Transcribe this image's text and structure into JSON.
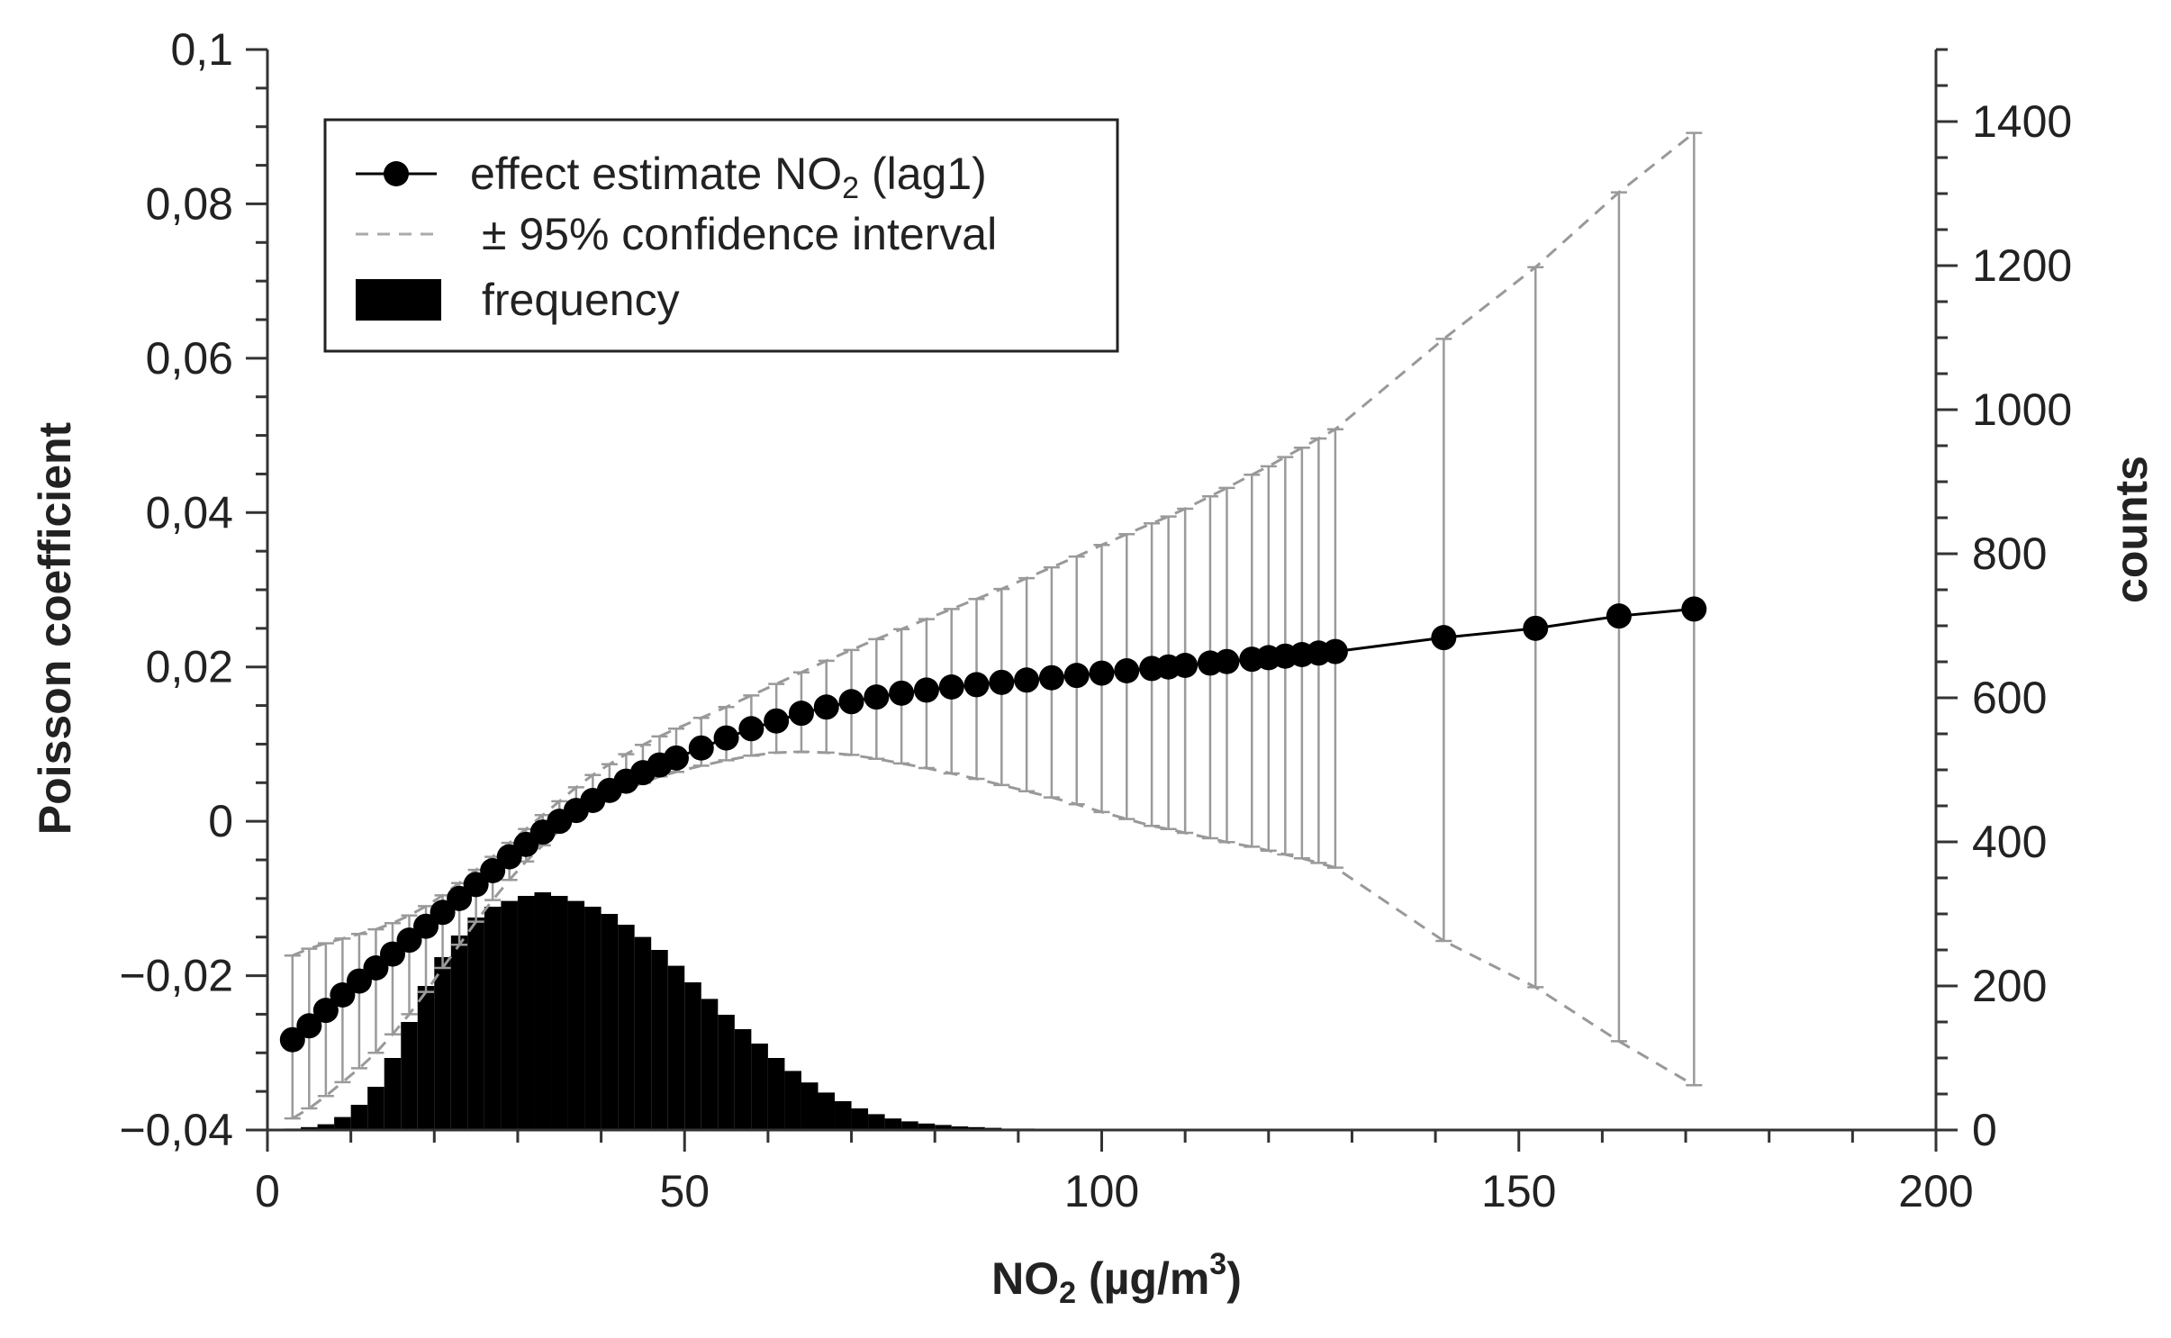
{
  "chart_data": {
    "type": "scatter",
    "title": "",
    "xlabel": "NO₂ (µg/m³)",
    "ylabel": "Poisson coefficient",
    "y2label": "counts",
    "xlim": [
      0,
      200
    ],
    "ylim": [
      -0.04,
      0.1
    ],
    "y2lim": [
      0,
      1500
    ],
    "x_ticks": [
      0,
      50,
      100,
      150,
      200
    ],
    "x_tick_labels": [
      "0",
      "50",
      "100",
      "150",
      "200"
    ],
    "y_ticks": [
      -0.04,
      -0.02,
      0,
      0.02,
      0.04,
      0.06,
      0.08,
      0.1
    ],
    "y_tick_labels": [
      "−0,04",
      "−0,02",
      "0",
      "0,02",
      "0,04",
      "0,06",
      "0,08",
      "0,1"
    ],
    "y2_ticks": [
      0,
      200,
      400,
      600,
      800,
      1000,
      1200,
      1400
    ],
    "y2_tick_labels": [
      "0",
      "200",
      "400",
      "600",
      "800",
      "1000",
      "1200",
      "1400"
    ],
    "grid": false,
    "legend_position": "top-left",
    "legend": {
      "effect_prefix": "effect estimate NO",
      "effect_subscript": "2",
      "effect_suffix": " (lag1)",
      "ci": "± 95% confidence interval",
      "frequency": "frequency"
    },
    "series": [
      {
        "name": "effect estimate NO₂ (lag1)",
        "kind": "line+markers",
        "x": [
          3,
          5,
          7,
          9,
          11,
          13,
          15,
          17,
          19,
          21,
          23,
          25,
          27,
          29,
          31,
          33,
          35,
          37,
          39,
          41,
          43,
          45,
          47,
          49,
          52,
          55,
          58,
          61,
          64,
          67,
          70,
          73,
          76,
          79,
          82,
          85,
          88,
          91,
          94,
          97,
          100,
          103,
          106,
          108,
          110,
          113,
          115,
          118,
          120,
          122,
          124,
          126,
          128,
          141,
          152,
          162,
          171
        ],
        "y": [
          -0.0283,
          -0.0265,
          -0.0245,
          -0.0225,
          -0.0207,
          -0.019,
          -0.0172,
          -0.0154,
          -0.0136,
          -0.0118,
          -0.01,
          -0.0082,
          -0.0064,
          -0.0046,
          -0.003,
          -0.0014,
          0.0,
          0.0014,
          0.0027,
          0.004,
          0.0052,
          0.0063,
          0.0073,
          0.0082,
          0.0095,
          0.0108,
          0.012,
          0.013,
          0.014,
          0.0148,
          0.0155,
          0.0161,
          0.0166,
          0.017,
          0.0174,
          0.0177,
          0.018,
          0.0183,
          0.0186,
          0.0189,
          0.0192,
          0.0195,
          0.0198,
          0.02,
          0.0202,
          0.0205,
          0.0207,
          0.021,
          0.0212,
          0.0214,
          0.0216,
          0.0218,
          0.022,
          0.0238,
          0.025,
          0.0266,
          0.0275
        ]
      },
      {
        "name": "± 95% confidence interval",
        "kind": "errorbars+dashed",
        "x": [
          3,
          5,
          7,
          9,
          11,
          13,
          15,
          17,
          19,
          21,
          23,
          25,
          27,
          29,
          31,
          33,
          35,
          37,
          39,
          41,
          43,
          45,
          47,
          49,
          52,
          55,
          58,
          61,
          64,
          67,
          70,
          73,
          76,
          79,
          82,
          85,
          88,
          91,
          94,
          97,
          100,
          103,
          106,
          108,
          110,
          113,
          115,
          118,
          120,
          122,
          124,
          126,
          128,
          141,
          152,
          162,
          171
        ],
        "upper": [
          -0.0174,
          -0.0165,
          -0.0158,
          -0.0152,
          -0.0146,
          -0.014,
          -0.0132,
          -0.0122,
          -0.011,
          -0.0096,
          -0.008,
          -0.0063,
          -0.0046,
          -0.0028,
          -0.001,
          0.0008,
          0.0026,
          0.0044,
          0.006,
          0.0074,
          0.0087,
          0.0099,
          0.011,
          0.012,
          0.0134,
          0.0148,
          0.0163,
          0.0178,
          0.0193,
          0.0208,
          0.0222,
          0.0236,
          0.0249,
          0.0262,
          0.0275,
          0.0288,
          0.0301,
          0.0315,
          0.0329,
          0.0343,
          0.0358,
          0.0372,
          0.0386,
          0.0395,
          0.0405,
          0.0421,
          0.0432,
          0.0449,
          0.046,
          0.0472,
          0.0484,
          0.0496,
          0.0508,
          0.0625,
          0.0718,
          0.0815,
          0.0892
        ],
        "lower": [
          -0.0385,
          -0.0372,
          -0.0356,
          -0.0338,
          -0.032,
          -0.03,
          -0.0276,
          -0.025,
          -0.0221,
          -0.019,
          -0.016,
          -0.013,
          -0.0102,
          -0.0076,
          -0.0052,
          -0.0031,
          -0.0012,
          0.0004,
          0.0018,
          0.003,
          0.0041,
          0.005,
          0.0058,
          0.0064,
          0.0072,
          0.0079,
          0.0085,
          0.0089,
          0.009,
          0.0089,
          0.0086,
          0.0081,
          0.0075,
          0.0069,
          0.0062,
          0.0055,
          0.0047,
          0.0039,
          0.0031,
          0.0022,
          0.0012,
          0.0003,
          -0.0006,
          -0.001,
          -0.0015,
          -0.0022,
          -0.0027,
          -0.0033,
          -0.0038,
          -0.0043,
          -0.0048,
          -0.0054,
          -0.006,
          -0.0155,
          -0.0215,
          -0.0285,
          -0.0342
        ]
      },
      {
        "name": "frequency",
        "kind": "histogram",
        "axis": "y2",
        "bin_start": [
          2,
          4,
          6,
          8,
          10,
          12,
          14,
          16,
          18,
          20,
          22,
          24,
          26,
          28,
          30,
          32,
          34,
          36,
          38,
          40,
          42,
          44,
          46,
          48,
          50,
          52,
          54,
          56,
          58,
          60,
          62,
          64,
          66,
          68,
          70,
          72,
          74,
          76,
          78,
          80,
          82,
          84,
          86,
          88,
          90,
          92,
          94,
          96,
          98,
          100,
          102,
          104
        ],
        "bin_width": 2,
        "counts": [
          2,
          4,
          8,
          18,
          35,
          60,
          100,
          150,
          200,
          240,
          270,
          295,
          310,
          318,
          325,
          330,
          325,
          318,
          310,
          300,
          285,
          268,
          250,
          228,
          205,
          182,
          160,
          140,
          120,
          100,
          82,
          66,
          52,
          40,
          30,
          22,
          16,
          12,
          9,
          7,
          5,
          4,
          3,
          2,
          2,
          1,
          1,
          1,
          1,
          1,
          1,
          1
        ]
      }
    ]
  }
}
